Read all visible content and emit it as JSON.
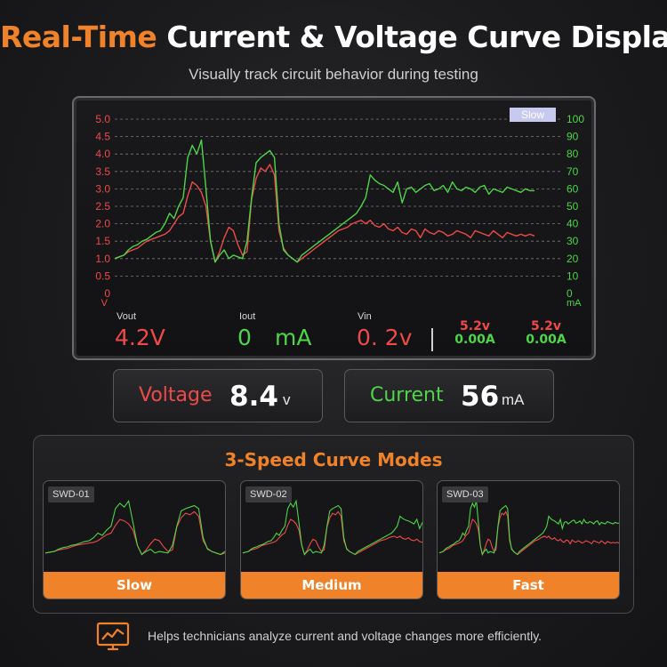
{
  "header": {
    "title_accent": "Real-Time",
    "title_rest": "Current & Voltage Curve Display",
    "subtitle": "Visually track circuit behavior during testing"
  },
  "colors": {
    "accent": "#f0822a",
    "voltage": "#ef4a4a",
    "current": "#4fd44a"
  },
  "scope": {
    "mode_badge": "Slow",
    "y_left_ticks": [
      "5.0",
      "4.5",
      "4.0",
      "3.5",
      "3.0",
      "2.5",
      "2.0",
      "1.5",
      "1.0",
      "0.5",
      "0"
    ],
    "y_left_unit": "V",
    "y_right_ticks": [
      "100",
      "90",
      "80",
      "70",
      "60",
      "50",
      "40",
      "30",
      "20",
      "10",
      "0"
    ],
    "y_right_unit": "mA",
    "readouts": {
      "vout_label": "Vout",
      "vout_value": "4.2V",
      "iout_label": "Iout",
      "iout_value": "0",
      "iout_unit": "mA",
      "vin_label": "Vin",
      "vin_value": "0. 2v",
      "ch1_voltage": "5.2v",
      "ch1_current": "0.00A",
      "ch2_voltage": "5.2v",
      "ch2_current": "0.00A"
    }
  },
  "chart_data": {
    "type": "line",
    "y_left_range": [
      0,
      5.0
    ],
    "y_right_range": [
      0,
      100
    ],
    "y_left_unit": "V",
    "y_right_unit": "mA",
    "grid": true,
    "series": [
      {
        "axis": "left",
        "color": "#ef4a4a",
        "values": [
          1.0,
          1.05,
          1.1,
          1.2,
          1.25,
          1.3,
          1.4,
          1.5,
          1.55,
          1.6,
          1.65,
          1.7,
          1.8,
          2.0,
          2.2,
          2.3,
          2.8,
          3.2,
          3.1,
          2.9,
          2.5,
          1.5,
          0.9,
          1.2,
          1.6,
          1.9,
          1.8,
          1.4,
          1.1,
          1.2,
          2.7,
          3.3,
          3.6,
          3.5,
          3.7,
          3.4,
          1.8,
          1.3,
          1.1,
          1.0,
          0.9,
          1.0,
          1.1,
          1.2,
          1.3,
          1.4,
          1.5,
          1.6,
          1.7,
          1.8,
          1.85,
          1.9,
          2.0,
          2.05,
          2.1,
          2.0,
          2.1,
          1.95,
          1.9,
          2.0,
          1.85,
          1.8,
          1.9,
          1.75,
          1.7,
          1.85,
          1.8,
          1.6,
          1.85,
          1.75,
          1.7,
          1.8,
          1.75,
          1.65,
          1.7,
          1.8,
          1.75,
          1.7,
          1.6,
          1.8,
          1.75,
          1.7,
          1.65,
          1.8,
          1.7,
          1.6,
          1.75,
          1.7,
          1.65,
          1.7,
          1.65,
          1.7,
          1.65
        ]
      },
      {
        "axis": "right",
        "color": "#4fd44a",
        "values": [
          20,
          21,
          22,
          25,
          27,
          28,
          30,
          31,
          33,
          35,
          36,
          40,
          46,
          43,
          50,
          55,
          78,
          85,
          80,
          88,
          60,
          30,
          18,
          22,
          25,
          20,
          22,
          21,
          20,
          30,
          55,
          75,
          78,
          80,
          82,
          78,
          40,
          25,
          22,
          20,
          18,
          22,
          24,
          26,
          28,
          30,
          32,
          34,
          36,
          38,
          40,
          42,
          44,
          46,
          50,
          55,
          68,
          65,
          63,
          62,
          60,
          58,
          64,
          52,
          60,
          61,
          58,
          60,
          62,
          63,
          59,
          60,
          62,
          58,
          64,
          60,
          59,
          61,
          60,
          58,
          61,
          62,
          57,
          60,
          59,
          58,
          61,
          60,
          59,
          58,
          60,
          59,
          59
        ]
      }
    ]
  },
  "meters": {
    "voltage_label": "Voltage",
    "voltage_value": "8.4",
    "voltage_unit": "v",
    "current_label": "Current",
    "current_value": "56",
    "current_unit": "mA"
  },
  "modes": {
    "title": "3-Speed Curve Modes",
    "cards": [
      {
        "tag": "SWD-01",
        "label": "Slow"
      },
      {
        "tag": "SWD-02",
        "label": "Medium"
      },
      {
        "tag": "SWD-03",
        "label": "Fast"
      }
    ]
  },
  "footer": {
    "icon": "monitor-chart-icon",
    "text": "Helps technicians analyze current and voltage changes more efficiently."
  }
}
